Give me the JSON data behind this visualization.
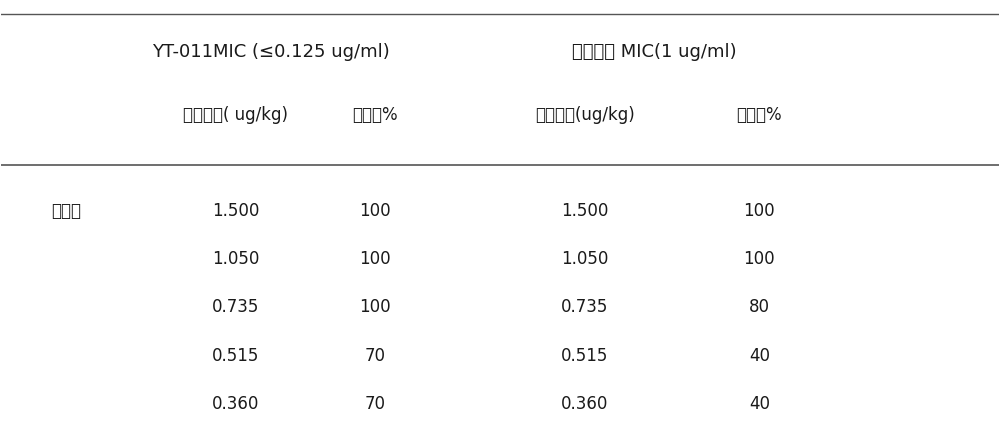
{
  "header1_line1": "YT-011MIC (≤0.125 ug/ml)",
  "header1_line2": "给药剂量( ug/kg)",
  "header1_line3": "存活率%",
  "header2_line1": "万古霉素 MIC(1 ug/ml)",
  "header2_line2": "给药剂量(ug/kg)",
  "header2_line3": "存活率%",
  "row_label": "治疗组",
  "yt011_doses": [
    "1.500",
    "1.050",
    "0.735",
    "0.515",
    "0.360"
  ],
  "yt011_survival": [
    "100",
    "100",
    "100",
    "70",
    "70"
  ],
  "wangumycin_doses": [
    "1.500",
    "1.050",
    "0.735",
    "0.515",
    "0.360"
  ],
  "wangumycin_survival": [
    "100",
    "100",
    "80",
    "40",
    "40"
  ],
  "bg_color": "#ffffff",
  "text_color": "#1a1a1a",
  "line_color": "#555555",
  "font_size_header1": 13,
  "font_size_header2": 12,
  "font_size_data": 12,
  "font_size_label": 12
}
